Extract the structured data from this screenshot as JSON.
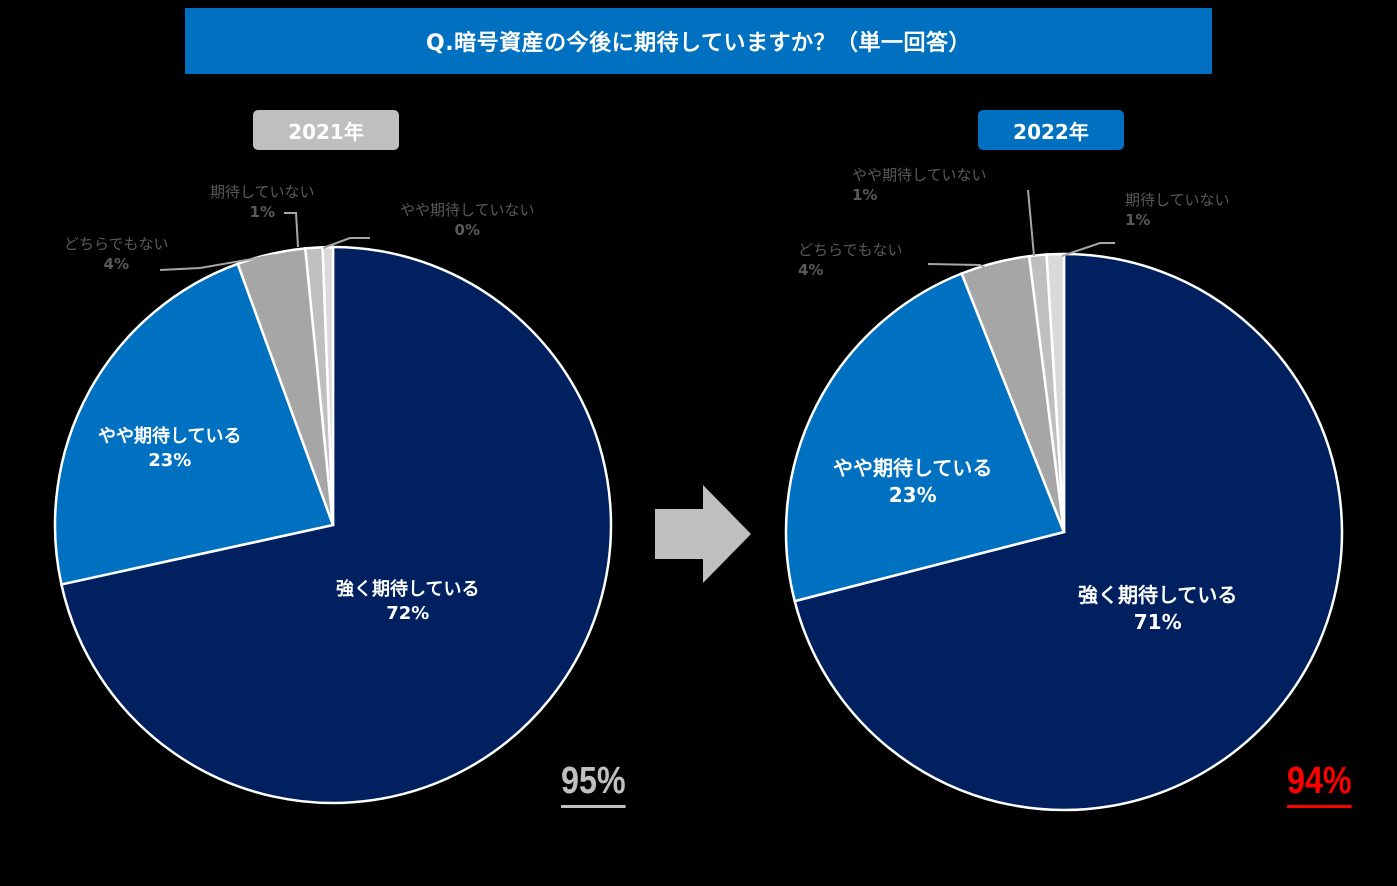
{
  "title": "Q.暗号資産の今後に期待していますか？（単一回答）",
  "arrow": {
    "icon": "right-arrow-icon",
    "color": "#BFBFBF"
  },
  "chart_data": [
    {
      "type": "pie",
      "title": "2021年",
      "badge_color": "#BFBFBF",
      "total_label": "95%",
      "total_color": "#BFBFBF",
      "categories": [
        "強く期待している",
        "やや期待している",
        "どちらでもない",
        "期待していない",
        "やや期待していない"
      ],
      "values": [
        72,
        23,
        4,
        1,
        0
      ],
      "value_labels": [
        "72%",
        "23%",
        "4%",
        "1%",
        "0%"
      ],
      "colors": [
        "#002060",
        "#0070C0",
        "#A6A6A6",
        "#BFBFBF",
        "#D9D9D9"
      ],
      "start_angle_deg": 0,
      "direction": "clockwise"
    },
    {
      "type": "pie",
      "title": "2022年",
      "badge_color": "#0070C0",
      "total_label": "94%",
      "total_color": "#FF0000",
      "categories": [
        "強く期待している",
        "やや期待している",
        "どちらでもない",
        "やや期待していない",
        "期待していない"
      ],
      "values": [
        71,
        23,
        4,
        1,
        1
      ],
      "value_labels": [
        "71%",
        "23%",
        "4%",
        "1%",
        "1%"
      ],
      "colors": [
        "#002060",
        "#0070C0",
        "#A6A6A6",
        "#BFBFBF",
        "#D9D9D9"
      ],
      "start_angle_deg": 0,
      "direction": "clockwise"
    }
  ],
  "labels2021": {
    "strong": {
      "name": "強く期待している",
      "pct": "72%"
    },
    "some": {
      "name": "やや期待している",
      "pct": "23%"
    },
    "neutral": {
      "name": "どちらでもない",
      "pct": "4%"
    },
    "not": {
      "name": "期待していない",
      "pct": "1%"
    },
    "slightly_not": {
      "name": "やや期待していない",
      "pct": "0%"
    }
  },
  "labels2022": {
    "strong": {
      "name": "強く期待している",
      "pct": "71%"
    },
    "some": {
      "name": "やや期待している",
      "pct": "23%"
    },
    "neutral": {
      "name": "どちらでもない",
      "pct": "4%"
    },
    "slightly_not": {
      "name": "やや期待していない",
      "pct": "1%"
    },
    "not": {
      "name": "期待していない",
      "pct": "1%"
    }
  }
}
